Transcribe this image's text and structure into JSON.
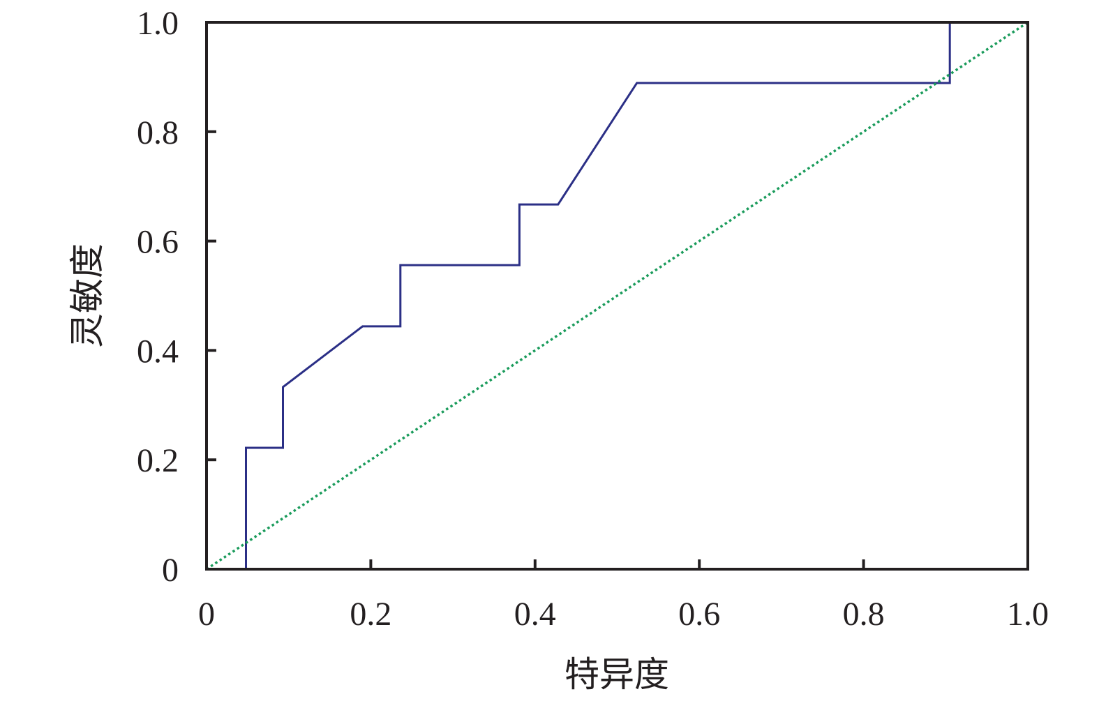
{
  "chart_data": {
    "type": "line",
    "title": "",
    "xlabel": "特异度",
    "ylabel": "灵敏度",
    "xlim": [
      0,
      1.0
    ],
    "ylim": [
      0,
      1.0
    ],
    "x_ticks": [
      "0",
      "0.2",
      "0.4",
      "0.6",
      "0.8",
      "1.0"
    ],
    "y_ticks": [
      "0",
      "0.2",
      "0.4",
      "0.6",
      "0.8",
      "1.0"
    ],
    "grid": false,
    "legend": "none",
    "series": [
      {
        "style": "solid",
        "color": "#2b2f86",
        "x": [
          0.048,
          0.048,
          0.093,
          0.093,
          0.19,
          0.236,
          0.236,
          0.381,
          0.381,
          0.428,
          0.524,
          0.905,
          0.905
        ],
        "y": [
          0.0,
          0.222,
          0.222,
          0.333,
          0.444,
          0.444,
          0.556,
          0.556,
          0.667,
          0.667,
          0.889,
          0.889,
          1.0
        ]
      },
      {
        "style": "dotted",
        "color": "#1a9b5b",
        "x": [
          0,
          1.0
        ],
        "y": [
          0,
          1.0
        ]
      }
    ]
  }
}
